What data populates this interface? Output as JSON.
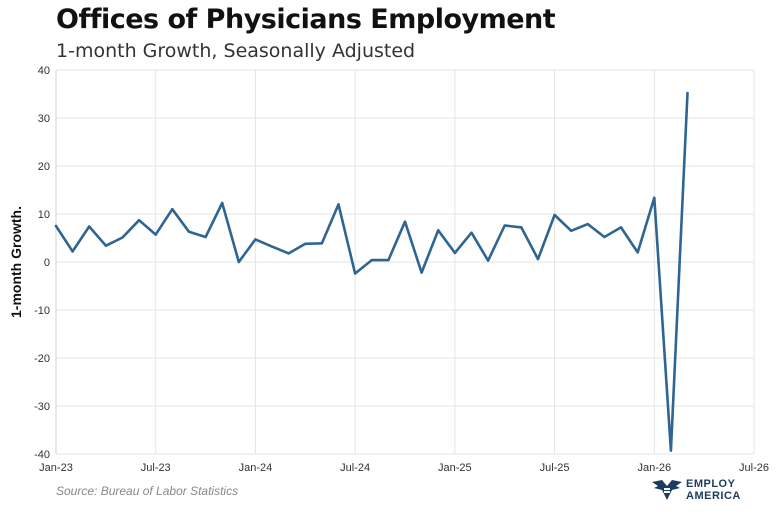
{
  "header": {
    "title": "Offices of Physicians Employment",
    "subtitle": "1-month Growth, Seasonally Adjusted"
  },
  "footer": {
    "source": "Source: Bureau of Labor Statistics",
    "logo_line1": "EMPLOY",
    "logo_line2": "AMERICA"
  },
  "colors": {
    "line": "#2e6592",
    "grid": "#e5e5e5",
    "logo": "#1d3b5f"
  },
  "chart_data": {
    "type": "line",
    "title": "Offices of Physicians Employment",
    "subtitle": "1-month Growth, Seasonally Adjusted",
    "ylabel": "1-month Growth.",
    "xlabel": "",
    "ylim": [
      -40,
      40
    ],
    "yticks": [
      40,
      30,
      20,
      10,
      0,
      -10,
      -20,
      -30,
      -40
    ],
    "xlim": [
      "2023-01",
      "2026-07"
    ],
    "xticks": [
      "Jan-23",
      "Jul-23",
      "Jan-24",
      "Jul-24",
      "Jan-25",
      "Jul-25",
      "Jan-26",
      "Jul-26"
    ],
    "grid": true,
    "legend": "none",
    "series": [
      {
        "x": [
          "2023-01",
          "2023-02",
          "2023-03",
          "2023-04",
          "2023-05",
          "2023-06",
          "2023-07",
          "2023-08",
          "2023-09",
          "2023-10",
          "2023-11",
          "2023-12",
          "2024-01",
          "2024-02",
          "2024-03",
          "2024-04",
          "2024-05",
          "2024-06",
          "2024-07",
          "2024-08",
          "2024-09",
          "2024-10",
          "2024-11",
          "2024-12",
          "2025-01",
          "2025-02",
          "2025-03",
          "2025-04",
          "2025-05",
          "2025-06",
          "2025-07",
          "2025-08",
          "2025-09",
          "2025-10",
          "2025-11",
          "2025-12",
          "2026-01",
          "2026-02",
          "2026-03"
        ],
        "values": [
          7.5,
          2.2,
          7.4,
          3.4,
          5.1,
          8.7,
          5.7,
          11.0,
          6.3,
          5.2,
          12.3,
          0.0,
          4.7,
          3.2,
          1.8,
          3.8,
          3.9,
          12.0,
          -2.4,
          0.4,
          0.4,
          8.4,
          -2.2,
          6.6,
          1.9,
          6.1,
          0.3,
          7.6,
          7.2,
          0.6,
          9.8,
          6.5,
          7.9,
          5.2,
          7.2,
          2.0,
          13.4,
          -39.3,
          35.2
        ]
      }
    ]
  }
}
